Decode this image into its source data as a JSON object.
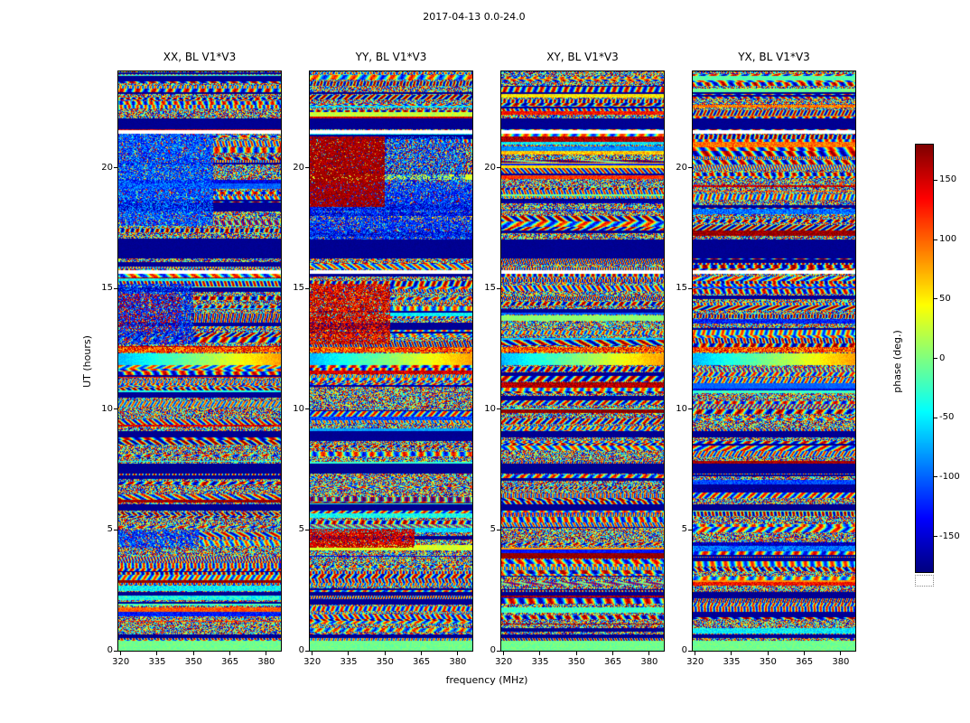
{
  "chart_data": {
    "type": "heatmap",
    "title": "2017-04-13 0.0-24.0",
    "xlabel": "frequency (MHz)",
    "ylabel": "UT (hours)",
    "xlim": [
      319,
      386
    ],
    "ylim": [
      0,
      24
    ],
    "x_ticks": [
      320,
      335,
      350,
      365,
      380
    ],
    "y_ticks": [
      0,
      5,
      10,
      15,
      20
    ],
    "colorbar": {
      "label": "phase (deg.)",
      "min": -180,
      "max": 180,
      "ticks": [
        150,
        100,
        50,
        0,
        -50,
        -100,
        -150
      ],
      "colormap": "jet"
    },
    "panels": [
      {
        "title": "XX, BL V1*V3",
        "patches": [
          {
            "t": [
              17.6,
              21.4
            ],
            "f": [
              319,
              358
            ],
            "phase": -108,
            "spread": 48,
            "mix": 0.25
          },
          {
            "t": [
              12.7,
              15.2
            ],
            "f": [
              319,
              350
            ],
            "phase": -122,
            "spread": 50,
            "mix": 0.35
          },
          {
            "t": [
              13.2,
              14.8
            ],
            "f": [
              319,
              344
            ],
            "phase": 150,
            "spread": 40,
            "mix": 0.75
          },
          {
            "t": [
              4.25,
              5.0
            ],
            "f": [
              319,
              352
            ],
            "phase": -118,
            "spread": 45,
            "mix": 0.35
          }
        ]
      },
      {
        "title": "YY, BL V1*V3",
        "patches": [
          {
            "t": [
              16.9,
              19.4
            ],
            "f": [
              319,
              386
            ],
            "phase": -120,
            "spread": 45,
            "mix": 0.25
          },
          {
            "t": [
              19.4,
              21.3
            ],
            "f": [
              350,
              383
            ],
            "phase": -110,
            "spread": 60,
            "mix": 0.5
          },
          {
            "t": [
              18.4,
              21.3
            ],
            "f": [
              319,
              350
            ],
            "phase": 167,
            "spread": 20,
            "mix": 0.12
          },
          {
            "t": [
              12.7,
              15.2
            ],
            "f": [
              319,
              352
            ],
            "phase": 148,
            "spread": 50,
            "mix": 0.25
          },
          {
            "t": [
              4.25,
              5.05
            ],
            "f": [
              319,
              362
            ],
            "phase": 152,
            "spread": 38,
            "mix": 0.2
          }
        ]
      },
      {
        "title": "XY, BL V1*V3",
        "patches": []
      },
      {
        "title": "YX, BL V1*V3",
        "patches": []
      }
    ],
    "features": {
      "dark_bands_ut": [
        [
          16.25,
          17.05
        ],
        [
          7.35,
          7.75
        ],
        [
          21.6,
          22.05
        ],
        [
          8.85,
          9.08
        ],
        [
          5.8,
          6.05
        ],
        [
          2.3,
          2.45
        ],
        [
          23.05,
          23.15
        ],
        [
          0.52,
          0.66
        ]
      ],
      "white_rows_ut": [
        [
          15.6,
          15.78
        ],
        [
          21.42,
          21.56
        ]
      ],
      "rainbow_band_ut": [
        11.85,
        12.3
      ],
      "bright_row_ut": [
        12.35,
        12.58
      ],
      "bottom_green_ut": [
        0,
        0.42
      ]
    }
  }
}
